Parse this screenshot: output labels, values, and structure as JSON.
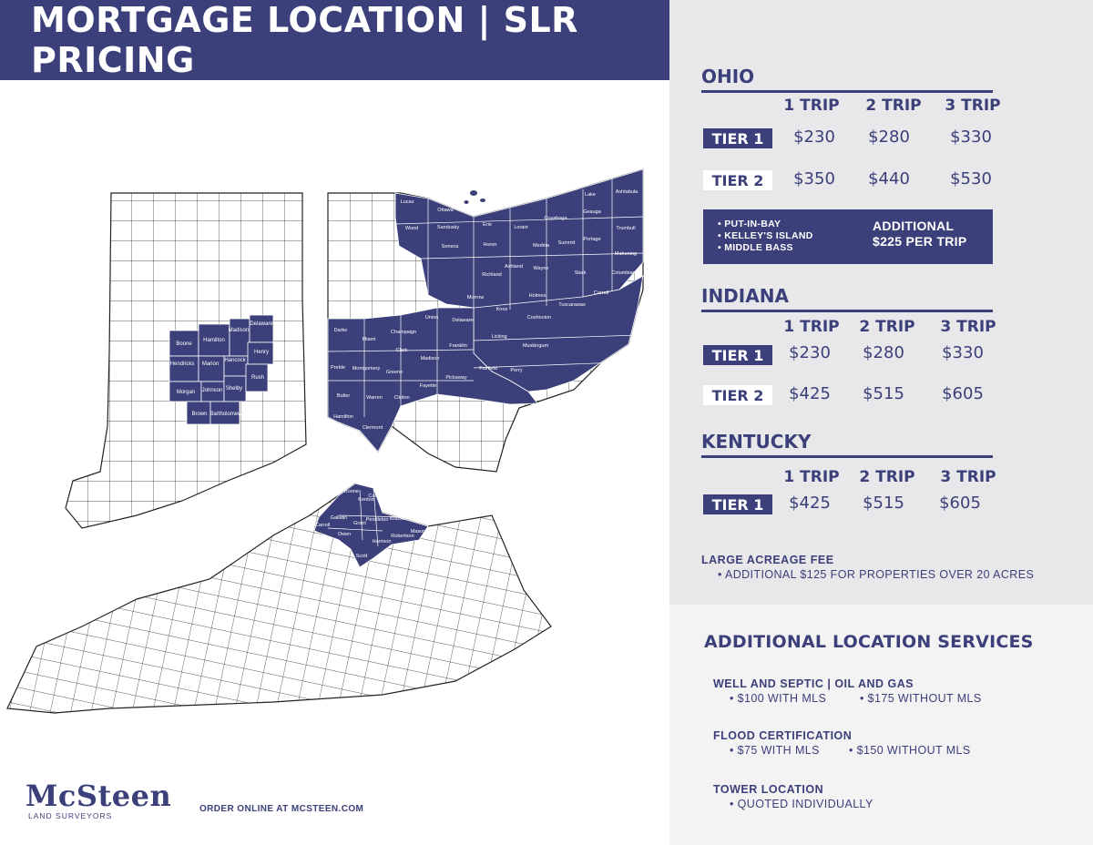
{
  "header": {
    "title": "MORTGAGE LOCATION  |  SLR PRICING"
  },
  "colors": {
    "navy": "#3b3f7a",
    "panel_gray": "#e8e8ea",
    "white": "#ffffff"
  },
  "ohio": {
    "heading": "OHIO",
    "columns": [
      "1 TRIP",
      "2 TRIP",
      "3 TRIP"
    ],
    "tiers": [
      {
        "label": "TIER 1",
        "prices": [
          "$230",
          "$280",
          "$330"
        ]
      },
      {
        "label": "TIER 2",
        "prices": [
          "$350",
          "$440",
          "$530"
        ]
      }
    ],
    "islands": [
      "• PUT-IN-BAY",
      "• KELLEY'S ISLAND",
      "• MIDDLE BASS"
    ],
    "islands_note_line1": "ADDITIONAL",
    "islands_note_line2": "$225 PER TRIP"
  },
  "indiana": {
    "heading": "INDIANA",
    "columns": [
      "1 TRIP",
      "2 TRIP",
      "3 TRIP"
    ],
    "tiers": [
      {
        "label": "TIER 1",
        "prices": [
          "$230",
          "$280",
          "$330"
        ]
      },
      {
        "label": "TIER 2",
        "prices": [
          "$425",
          "$515",
          "$605"
        ]
      }
    ]
  },
  "kentucky": {
    "heading": "KENTUCKY",
    "columns": [
      "1 TRIP",
      "2 TRIP",
      "3 TRIP"
    ],
    "tiers": [
      {
        "label": "TIER 1",
        "prices": [
          "$425",
          "$515",
          "$605"
        ]
      }
    ]
  },
  "large_acreage": {
    "title": "LARGE ACREAGE FEE",
    "note": "• ADDITIONAL $125 FOR PROPERTIES OVER 20 ACRES"
  },
  "services": {
    "title": "ADDITIONAL LOCATION SERVICES",
    "well_septic": {
      "title": "WELL AND SEPTIC | OIL AND GAS",
      "item1": "• $100 WITH MLS",
      "item2": "• $175 WITHOUT MLS"
    },
    "flood": {
      "title": "FLOOD CERTIFICATION",
      "item1": "• $75 WITH MLS",
      "item2": "• $150 WITHOUT MLS"
    },
    "tower": {
      "title": "TOWER LOCATION",
      "item1": "• QUOTED INDIVIDUALLY"
    }
  },
  "footer": {
    "logo": "McSteen",
    "logo_sub": "LAND SURVEYORS",
    "order_text": "ORDER ONLINE AT MCSTEEN.COM"
  },
  "map_labels": {
    "indiana": [
      "Boone",
      "Hamilton",
      "Madison",
      "Delaware",
      "Hendricks",
      "Marion",
      "Hancock",
      "Henry",
      "Morgan",
      "Johnson",
      "Shelby",
      "Rush",
      "Brown",
      "Bartholomew"
    ],
    "ohio": [
      "Lucas",
      "Ottawa",
      "Wood",
      "Sandusky",
      "Erie",
      "Lorain",
      "Cuyahoga",
      "Lake",
      "Ashtabula",
      "Geauga",
      "Trumbull",
      "Seneca",
      "Huron",
      "Medina",
      "Summit",
      "Portage",
      "Mahoning",
      "Richland",
      "Ashland",
      "Wayne",
      "Stark",
      "Columbiana",
      "Morrow",
      "Holmes",
      "Carroll",
      "Tuscarawas",
      "Knox",
      "Coshocton",
      "Union",
      "Delaware",
      "Champaign",
      "Darke",
      "Miami",
      "Clark",
      "Licking",
      "Franklin",
      "Madison",
      "Muskingum",
      "Preble",
      "Montgomery",
      "Greene",
      "Fairfield",
      "Perry",
      "Pickaway",
      "Fayette",
      "Butler",
      "Warren",
      "Clinton",
      "Hamilton",
      "Clermont"
    ],
    "kentucky": [
      "Boone",
      "Kenton",
      "Campbell",
      "Carroll",
      "Gallatin",
      "Grant",
      "Pendleton",
      "Bracken",
      "Owen",
      "Harrison",
      "Mason",
      "Robertson",
      "Scott"
    ]
  }
}
